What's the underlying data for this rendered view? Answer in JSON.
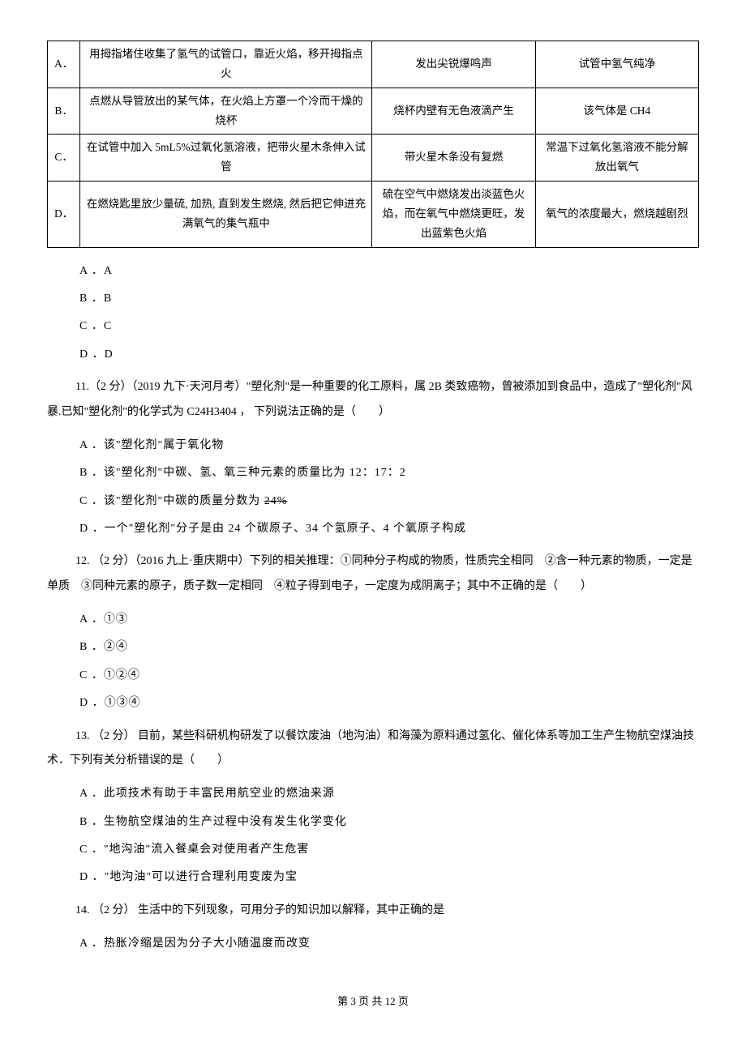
{
  "table": {
    "rows": [
      {
        "label": "A．",
        "operation": "用拇指堵住收集了氢气的试管口，靠近火焰，移开拇指点火",
        "phenomenon": "发出尖锐爆鸣声",
        "conclusion": "试管中氢气纯净"
      },
      {
        "label": "B．",
        "operation": "点燃从导管放出的某气体，在火焰上方罩一个冷而干燥的烧杯",
        "phenomenon": "烧杯内壁有无色液滴产生",
        "conclusion": "该气体是 CH4"
      },
      {
        "label": "C．",
        "operation": "在试管中加入 5mL5%过氧化氢溶液，把带火星木条伸入试管",
        "phenomenon": "带火星木条没有复燃",
        "conclusion": "常温下过氧化氢溶液不能分解放出氧气"
      },
      {
        "label": "D．",
        "operation": "在燃烧匙里放少量硫, 加热, 直到发生燃烧, 然后把它伸进充满氧气的集气瓶中",
        "phenomenon": "硫在空气中燃烧发出淡蓝色火焰，而在氧气中燃烧更旺，发出蓝紫色火焰",
        "conclusion": "氧气的浓度最大，燃烧越剧烈"
      }
    ]
  },
  "table_options": {
    "a": "A ．A",
    "b": "B ．B",
    "c": "C ．C",
    "d": "D ．D"
  },
  "q11": {
    "stem": "11.（2 分）（2019 九下·天河月考）\"塑化剂\"是一种重要的化工原料，属 2B 类致癌物，曾被添加到食品中，造成了\"塑化剂\"风暴.已知\"塑化剂\"的化学式为 C24H3404 ，  下列说法正确的是（　　）",
    "a": "A ．该\"塑化剂\"属于氧化物",
    "b": "B ．该\"塑化剂\"中碳、氢、氧三种元素的质量比为 12：17：2",
    "c_prefix": "C ．该\"塑化剂\"中碳的质量分数为 ",
    "c_strike": "24%",
    "d": "D ．一个\"塑化剂\"分子是由 24 个碳原子、34 个氢原子、4 个氧原子构成"
  },
  "q12": {
    "stem": "12. （2 分）（2016 九上·重庆期中）下列的相关推理：①同种分子构成的物质，性质完全相同　②含一种元素的物质，一定是单质　③同种元素的原子，质子数一定相同　④粒子得到电子，一定度为成阴离子；其中不正确的是（　　）",
    "a": "A ．①③",
    "b": "B ．②④",
    "c": "C ．①②④",
    "d": "D ．①③④"
  },
  "q13": {
    "stem": "13. （2 分） 目前，某些科研机构研发了以餐饮废油（地沟油）和海藻为原料通过氢化、催化体系等加工生产生物航空煤油技术．下列有关分析错误的是（　　）",
    "a": "A ．此项技术有助于丰富民用航空业的燃油来源",
    "b": "B ．生物航空煤油的生产过程中没有发生化学变化",
    "c": "C ．\"地沟油\"流入餐桌会对使用者产生危害",
    "d": "D ．\"地沟油\"可以进行合理利用变废为宝"
  },
  "q14": {
    "stem": "14. （2 分） 生活中的下列现象，可用分子的知识加以解释，其中正确的是",
    "a": "A ．热胀冷缩是因为分子大小随温度而改变"
  },
  "footer": "第 3 页 共 12 页"
}
